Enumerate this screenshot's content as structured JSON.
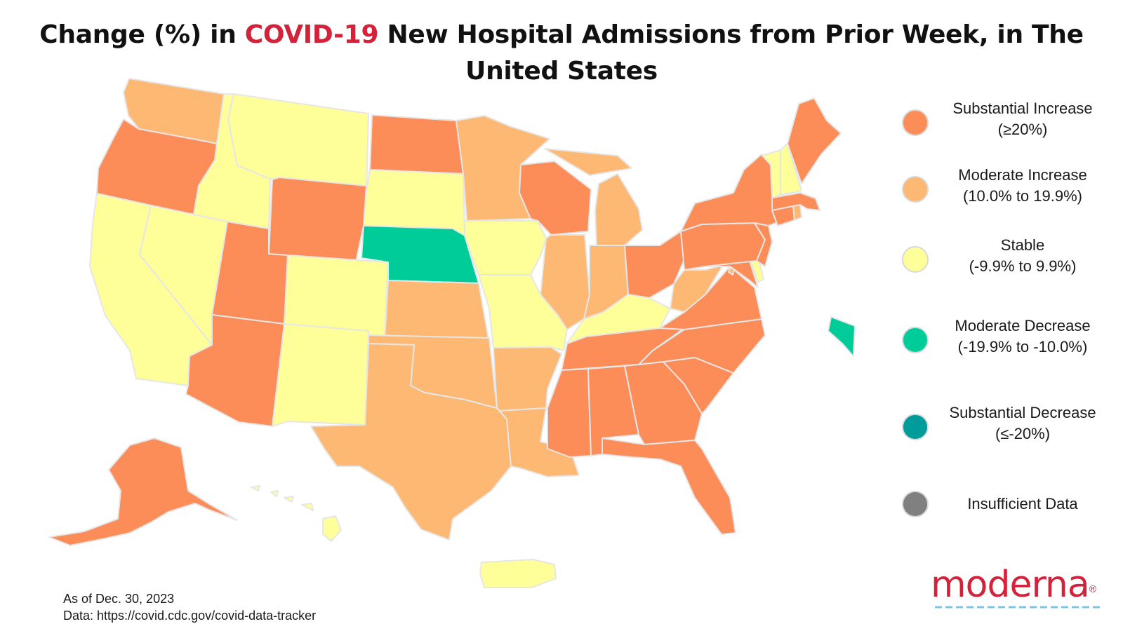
{
  "title": {
    "part1": "Change (%) in ",
    "highlight": "COVID-19",
    "part2": " New Hospital Admissions from Prior Week, in The United States"
  },
  "colors": {
    "substantial_increase": "#fc8d59",
    "moderate_increase": "#fdb874",
    "stable": "#ffff99",
    "moderate_decrease": "#00cc99",
    "substantial_decrease": "#009b9b",
    "insufficient_data": "#808080",
    "brand_red": "#d4223a",
    "state_border": "#e6e6e6"
  },
  "legend": [
    {
      "key": "substantial_increase",
      "line1": "Substantial Increase",
      "line2": "(≥20%)"
    },
    {
      "key": "moderate_increase",
      "line1": "Moderate Increase",
      "line2": "(10.0% to 19.9%)"
    },
    {
      "key": "stable",
      "line1": "Stable",
      "line2": "(-9.9% to 9.9%)"
    },
    {
      "key": "moderate_decrease",
      "line1": "Moderate Decrease",
      "line2": "(-19.9% to -10.0%)"
    },
    {
      "key": "substantial_decrease",
      "line1": "Substantial Decrease",
      "line2": "(≤-20%)"
    },
    {
      "key": "insufficient_data",
      "line1": "Insufficient Data",
      "line2": ""
    }
  ],
  "states": {
    "WA": "moderate_increase",
    "OR": "substantial_increase",
    "CA": "stable",
    "NV": "stable",
    "ID": "stable",
    "MT": "stable",
    "WY": "substantial_increase",
    "UT": "substantial_increase",
    "AZ": "substantial_increase",
    "CO": "stable",
    "NM": "stable",
    "ND": "substantial_increase",
    "SD": "stable",
    "NE": "moderate_decrease",
    "KS": "moderate_increase",
    "OK": "moderate_increase",
    "TX": "moderate_increase",
    "MN": "moderate_increase",
    "IA": "stable",
    "MO": "stable",
    "AR": "moderate_increase",
    "LA": "moderate_increase",
    "WI": "substantial_increase",
    "IL": "moderate_increase",
    "MI": "moderate_increase",
    "IN": "moderate_increase",
    "OH": "substantial_increase",
    "KY": "stable",
    "TN": "substantial_increase",
    "MS": "substantial_increase",
    "AL": "substantial_increase",
    "GA": "substantial_increase",
    "FL": "substantial_increase",
    "SC": "substantial_increase",
    "NC": "substantial_increase",
    "VA": "substantial_increase",
    "WV": "moderate_increase",
    "PA": "substantial_increase",
    "NY": "substantial_increase",
    "NJ": "substantial_increase",
    "DE": "stable",
    "MD": "substantial_increase",
    "DC": "moderate_increase",
    "CT": "substantial_increase",
    "RI": "moderate_increase",
    "MA": "substantial_increase",
    "VT": "stable",
    "NH": "stable",
    "ME": "substantial_increase",
    "AK": "substantial_increase",
    "HI": "stable",
    "PR": "stable",
    "GU": "moderate_decrease"
  },
  "footnote": {
    "as_of": "As of Dec. 30, 2023",
    "source": "Data: https://covid.cdc.gov/covid-data-tracker"
  },
  "logo": {
    "text": "moderna",
    "mark": "®"
  }
}
